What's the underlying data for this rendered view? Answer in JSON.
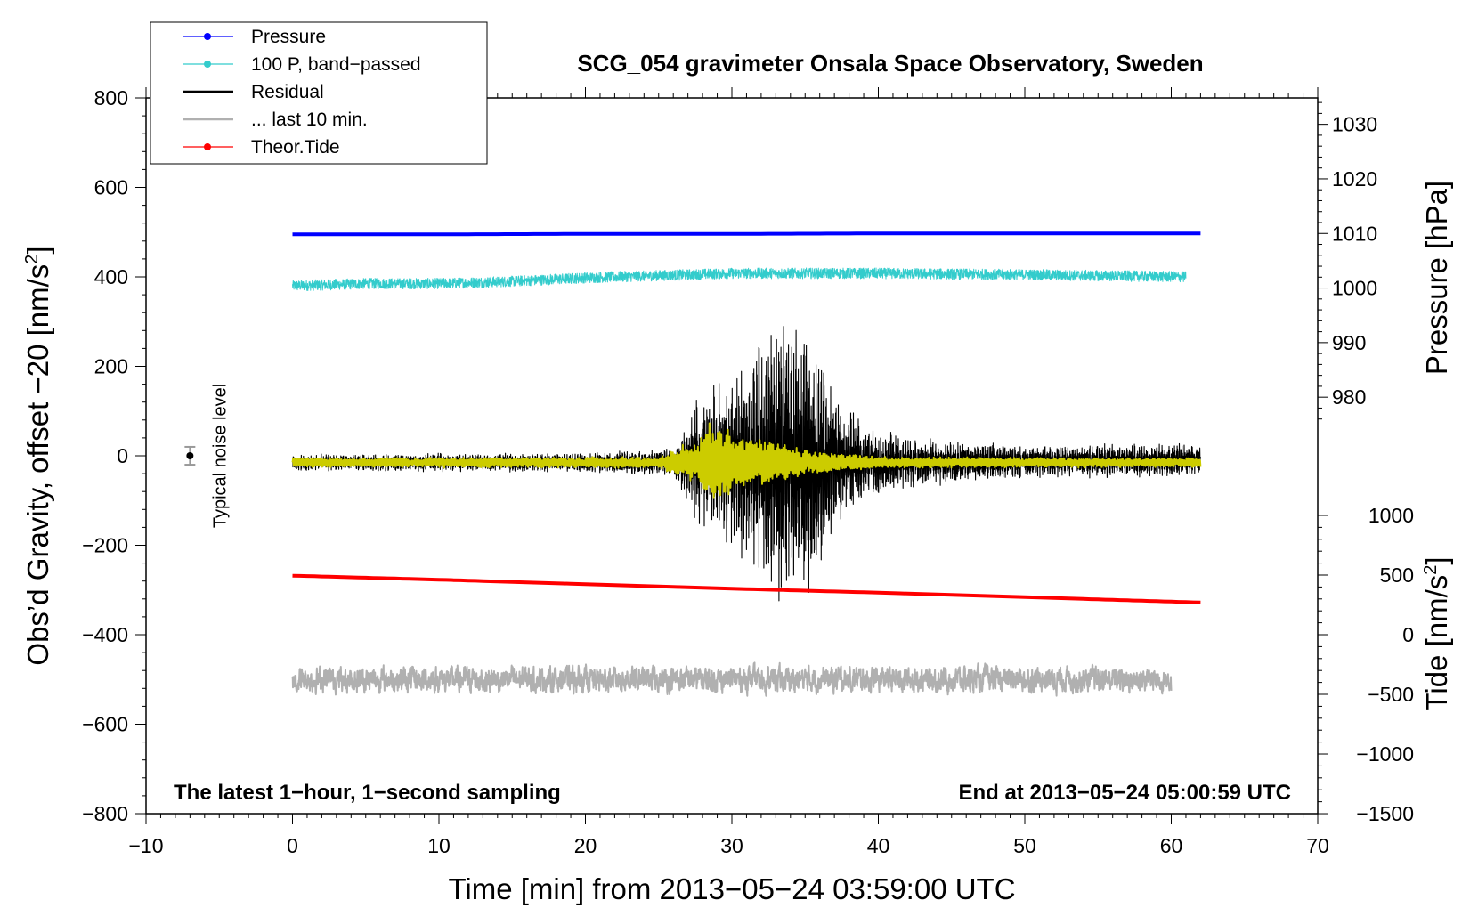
{
  "chart_data": {
    "type": "line",
    "title": "SCG_054 gravimeter Onsala Space Observatory, Sweden",
    "xlabel": "Time [min] from 2013−05−24 03:59:00 UTC",
    "ylabel": "Obs’d Gravity, offset −20 [nm/s",
    "ylabel_sup": "2",
    "ylabel_close": "]",
    "xlim": [
      -10,
      70
    ],
    "ylim": [
      -800,
      800
    ],
    "x_ticks": [
      -10,
      0,
      10,
      20,
      30,
      40,
      50,
      60,
      70
    ],
    "x_tick_labels": [
      "−10",
      "0",
      "10",
      "20",
      "30",
      "40",
      "50",
      "60",
      "70"
    ],
    "y_ticks": [
      800,
      600,
      400,
      200,
      0,
      -200,
      -400,
      -600,
      -800
    ],
    "y_tick_labels": [
      "800",
      "600",
      "400",
      "200",
      "0",
      "−200",
      "−400",
      "−600",
      "−800"
    ],
    "right_axes": {
      "pressure": {
        "label": "Pressure [hPa]",
        "ticks": [
          1030,
          1020,
          1010,
          1000,
          990,
          980
        ],
        "tick_labels": [
          "1030",
          "1020",
          "1010",
          "1000",
          "990",
          "980"
        ],
        "gravity_at_1010": 497,
        "gravity_per_hpa": 12.2
      },
      "tide": {
        "label": "Tide [nm/s",
        "label_sup": "2",
        "label_close": "]",
        "ticks": [
          1000,
          500,
          0,
          -500,
          -1000,
          -1500
        ],
        "tick_labels": [
          "1000",
          "500",
          "0",
          "−500",
          "−1000",
          "−1500"
        ],
        "gravity_at_0": -400,
        "gravity_per_unit": 0.2667
      }
    },
    "series": [
      {
        "name": "Pressure",
        "color": "#0000ff",
        "style": "line-dot",
        "x": [
          0,
          10,
          20,
          30,
          40,
          50,
          62
        ],
        "y": [
          495,
          495,
          496,
          496,
          497,
          497,
          497
        ]
      },
      {
        "name": "100 P, band−passed",
        "color": "#33cccc",
        "style": "line-dot",
        "approx": "noise",
        "x": [
          0,
          5,
          10,
          15,
          20,
          30,
          40,
          50,
          61
        ],
        "y": [
          380,
          385,
          385,
          390,
          398,
          408,
          408,
          405,
          400
        ],
        "noise_amplitude": 12
      },
      {
        "name": "Residual",
        "color": "#000000",
        "style": "line",
        "approx": "envelope",
        "x": [
          0,
          20,
          26,
          27.5,
          29,
          31,
          33,
          34.5,
          35.5,
          37,
          39,
          42,
          50,
          62
        ],
        "y": [
          -15,
          -15,
          -15,
          -15,
          -15,
          -15,
          -15,
          -15,
          -15,
          -15,
          -15,
          -15,
          -12,
          -10
        ],
        "envelope_amplitude": [
          15,
          18,
          25,
          110,
          150,
          180,
          250,
          270,
          240,
          130,
          70,
          45,
          30,
          30
        ]
      },
      {
        "name": "... last 10 min.",
        "color": "#b0b0b0",
        "style": "line",
        "approx": "noise",
        "x": [
          0,
          60
        ],
        "y": [
          -500,
          -500
        ],
        "noise_amplitude": 25
      },
      {
        "name": "Theor.Tide",
        "color": "#ff0000",
        "style": "line-dot",
        "x": [
          0,
          10,
          20,
          30,
          40,
          50,
          62
        ],
        "y": [
          -268,
          -277,
          -287,
          -297,
          -306,
          -316,
          -328
        ]
      },
      {
        "name": "band-passed residual",
        "color": "#cccc00",
        "style": "line",
        "approx": "envelope",
        "x": [
          0,
          25,
          27.5,
          28.5,
          30,
          32,
          34,
          36,
          38,
          40,
          62
        ],
        "y": [
          -15,
          -15,
          -15,
          -15,
          -15,
          -15,
          -15,
          -15,
          -15,
          -15,
          -15
        ],
        "envelope_amplitude": [
          8,
          10,
          40,
          75,
          60,
          45,
          30,
          22,
          15,
          10,
          8
        ]
      }
    ],
    "legend": {
      "placement": "top-left",
      "entries": [
        {
          "label": "Pressure",
          "color": "#0000ff",
          "marker": true
        },
        {
          "label": "100 P, band−passed",
          "color": "#33cccc",
          "marker": true
        },
        {
          "label": "Residual",
          "color": "#000000",
          "marker": false
        },
        {
          "label": "... last 10 min.",
          "color": "#b0b0b0",
          "marker": false
        },
        {
          "label": "Theor.Tide",
          "color": "#ff0000",
          "marker": true
        }
      ]
    },
    "noise_indicator": {
      "label": "Typical noise level",
      "x": -7,
      "y": 0,
      "error": 20
    }
  },
  "annotations": {
    "bottom_left": "The latest 1−hour, 1−second sampling",
    "bottom_right": "End at 2013−05−24 05:00:59 UTC"
  }
}
